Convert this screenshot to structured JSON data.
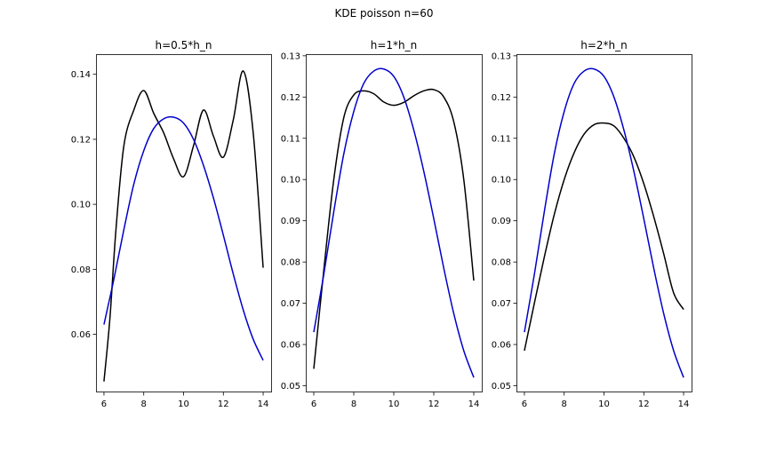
{
  "figure": {
    "title": "KDE poisson n=60"
  },
  "chart_data": [
    {
      "type": "line",
      "title": "h=0.5*h_n",
      "xlim": [
        5.6,
        14.4
      ],
      "ylim": [
        0.0424,
        0.1462
      ],
      "xticks": [
        6,
        8,
        10,
        12,
        14
      ],
      "yticks": [
        0.06,
        0.08,
        0.1,
        0.12,
        0.14
      ],
      "ytick_labels": [
        "0.06",
        "0.08",
        "0.10",
        "0.12",
        "0.14"
      ],
      "grid": false,
      "series": [
        {
          "color": "#000000",
          "x": [
            6,
            6.3,
            6.6,
            7,
            7.5,
            8,
            8.5,
            9,
            9.5,
            10,
            10.5,
            11,
            11.5,
            12,
            12.5,
            13,
            13.5,
            14
          ],
          "y": [
            0.0455,
            0.065,
            0.092,
            0.118,
            0.129,
            0.135,
            0.128,
            0.122,
            0.114,
            0.1085,
            0.118,
            0.129,
            0.121,
            0.1145,
            0.126,
            0.141,
            0.122,
            0.0805
          ]
        },
        {
          "color": "#0000cc",
          "x": [
            6,
            6.5,
            7,
            7.5,
            8,
            8.5,
            9,
            9.5,
            10,
            10.5,
            11,
            11.5,
            12,
            12.5,
            13,
            13.5,
            14
          ],
          "y": [
            0.063,
            0.077,
            0.0922,
            0.1062,
            0.1165,
            0.1233,
            0.1263,
            0.1268,
            0.125,
            0.12,
            0.112,
            0.102,
            0.0905,
            0.0785,
            0.0675,
            0.0585,
            0.052
          ]
        }
      ]
    },
    {
      "type": "line",
      "title": "h=1*h_n",
      "xlim": [
        5.6,
        14.4
      ],
      "ylim": [
        0.0486,
        0.1304
      ],
      "xticks": [
        6,
        8,
        10,
        12,
        14
      ],
      "yticks": [
        0.05,
        0.06,
        0.07,
        0.08,
        0.09,
        0.1,
        0.11,
        0.12,
        0.13
      ],
      "ytick_labels": [
        "0.05",
        "0.06",
        "0.07",
        "0.08",
        "0.09",
        "0.10",
        "0.11",
        "0.12",
        "0.13"
      ],
      "grid": false,
      "series": [
        {
          "color": "#000000",
          "x": [
            6,
            6.5,
            7,
            7.5,
            8,
            8.5,
            9,
            9.5,
            10,
            10.5,
            11,
            11.5,
            12,
            12.5,
            13,
            13.5,
            14
          ],
          "y": [
            0.0541,
            0.078,
            0.1,
            0.115,
            0.1205,
            0.1215,
            0.1208,
            0.1188,
            0.118,
            0.1187,
            0.1203,
            0.1215,
            0.1218,
            0.12,
            0.114,
            0.1,
            0.0755
          ]
        },
        {
          "color": "#0000cc",
          "x": [
            6,
            6.5,
            7,
            7.5,
            8,
            8.5,
            9,
            9.5,
            10,
            10.5,
            11,
            11.5,
            12,
            12.5,
            13,
            13.5,
            14
          ],
          "y": [
            0.063,
            0.077,
            0.0922,
            0.1062,
            0.1165,
            0.1233,
            0.1263,
            0.1268,
            0.125,
            0.12,
            0.112,
            0.102,
            0.0905,
            0.0785,
            0.0675,
            0.0585,
            0.052
          ]
        }
      ]
    },
    {
      "type": "line",
      "title": "h=2*h_n",
      "xlim": [
        5.6,
        14.4
      ],
      "ylim": [
        0.0486,
        0.1304
      ],
      "xticks": [
        6,
        8,
        10,
        12,
        14
      ],
      "yticks": [
        0.05,
        0.06,
        0.07,
        0.08,
        0.09,
        0.1,
        0.11,
        0.12,
        0.13
      ],
      "ytick_labels": [
        "0.05",
        "0.06",
        "0.07",
        "0.08",
        "0.09",
        "0.10",
        "0.11",
        "0.12",
        "0.13"
      ],
      "grid": false,
      "series": [
        {
          "color": "#000000",
          "x": [
            6,
            6.5,
            7,
            7.5,
            8,
            8.5,
            9,
            9.5,
            10,
            10.5,
            11,
            11.5,
            12,
            12.5,
            13,
            13.5,
            14
          ],
          "y": [
            0.0585,
            0.07,
            0.0812,
            0.0915,
            0.1,
            0.1065,
            0.111,
            0.1133,
            0.1137,
            0.113,
            0.11,
            0.1055,
            0.099,
            0.091,
            0.082,
            0.0725,
            0.0685
          ]
        },
        {
          "color": "#0000cc",
          "x": [
            6,
            6.5,
            7,
            7.5,
            8,
            8.5,
            9,
            9.5,
            10,
            10.5,
            11,
            11.5,
            12,
            12.5,
            13,
            13.5,
            14
          ],
          "y": [
            0.063,
            0.077,
            0.0922,
            0.1062,
            0.1165,
            0.1233,
            0.1263,
            0.1268,
            0.125,
            0.12,
            0.112,
            0.102,
            0.0905,
            0.0785,
            0.0675,
            0.0585,
            0.052
          ]
        }
      ]
    }
  ]
}
